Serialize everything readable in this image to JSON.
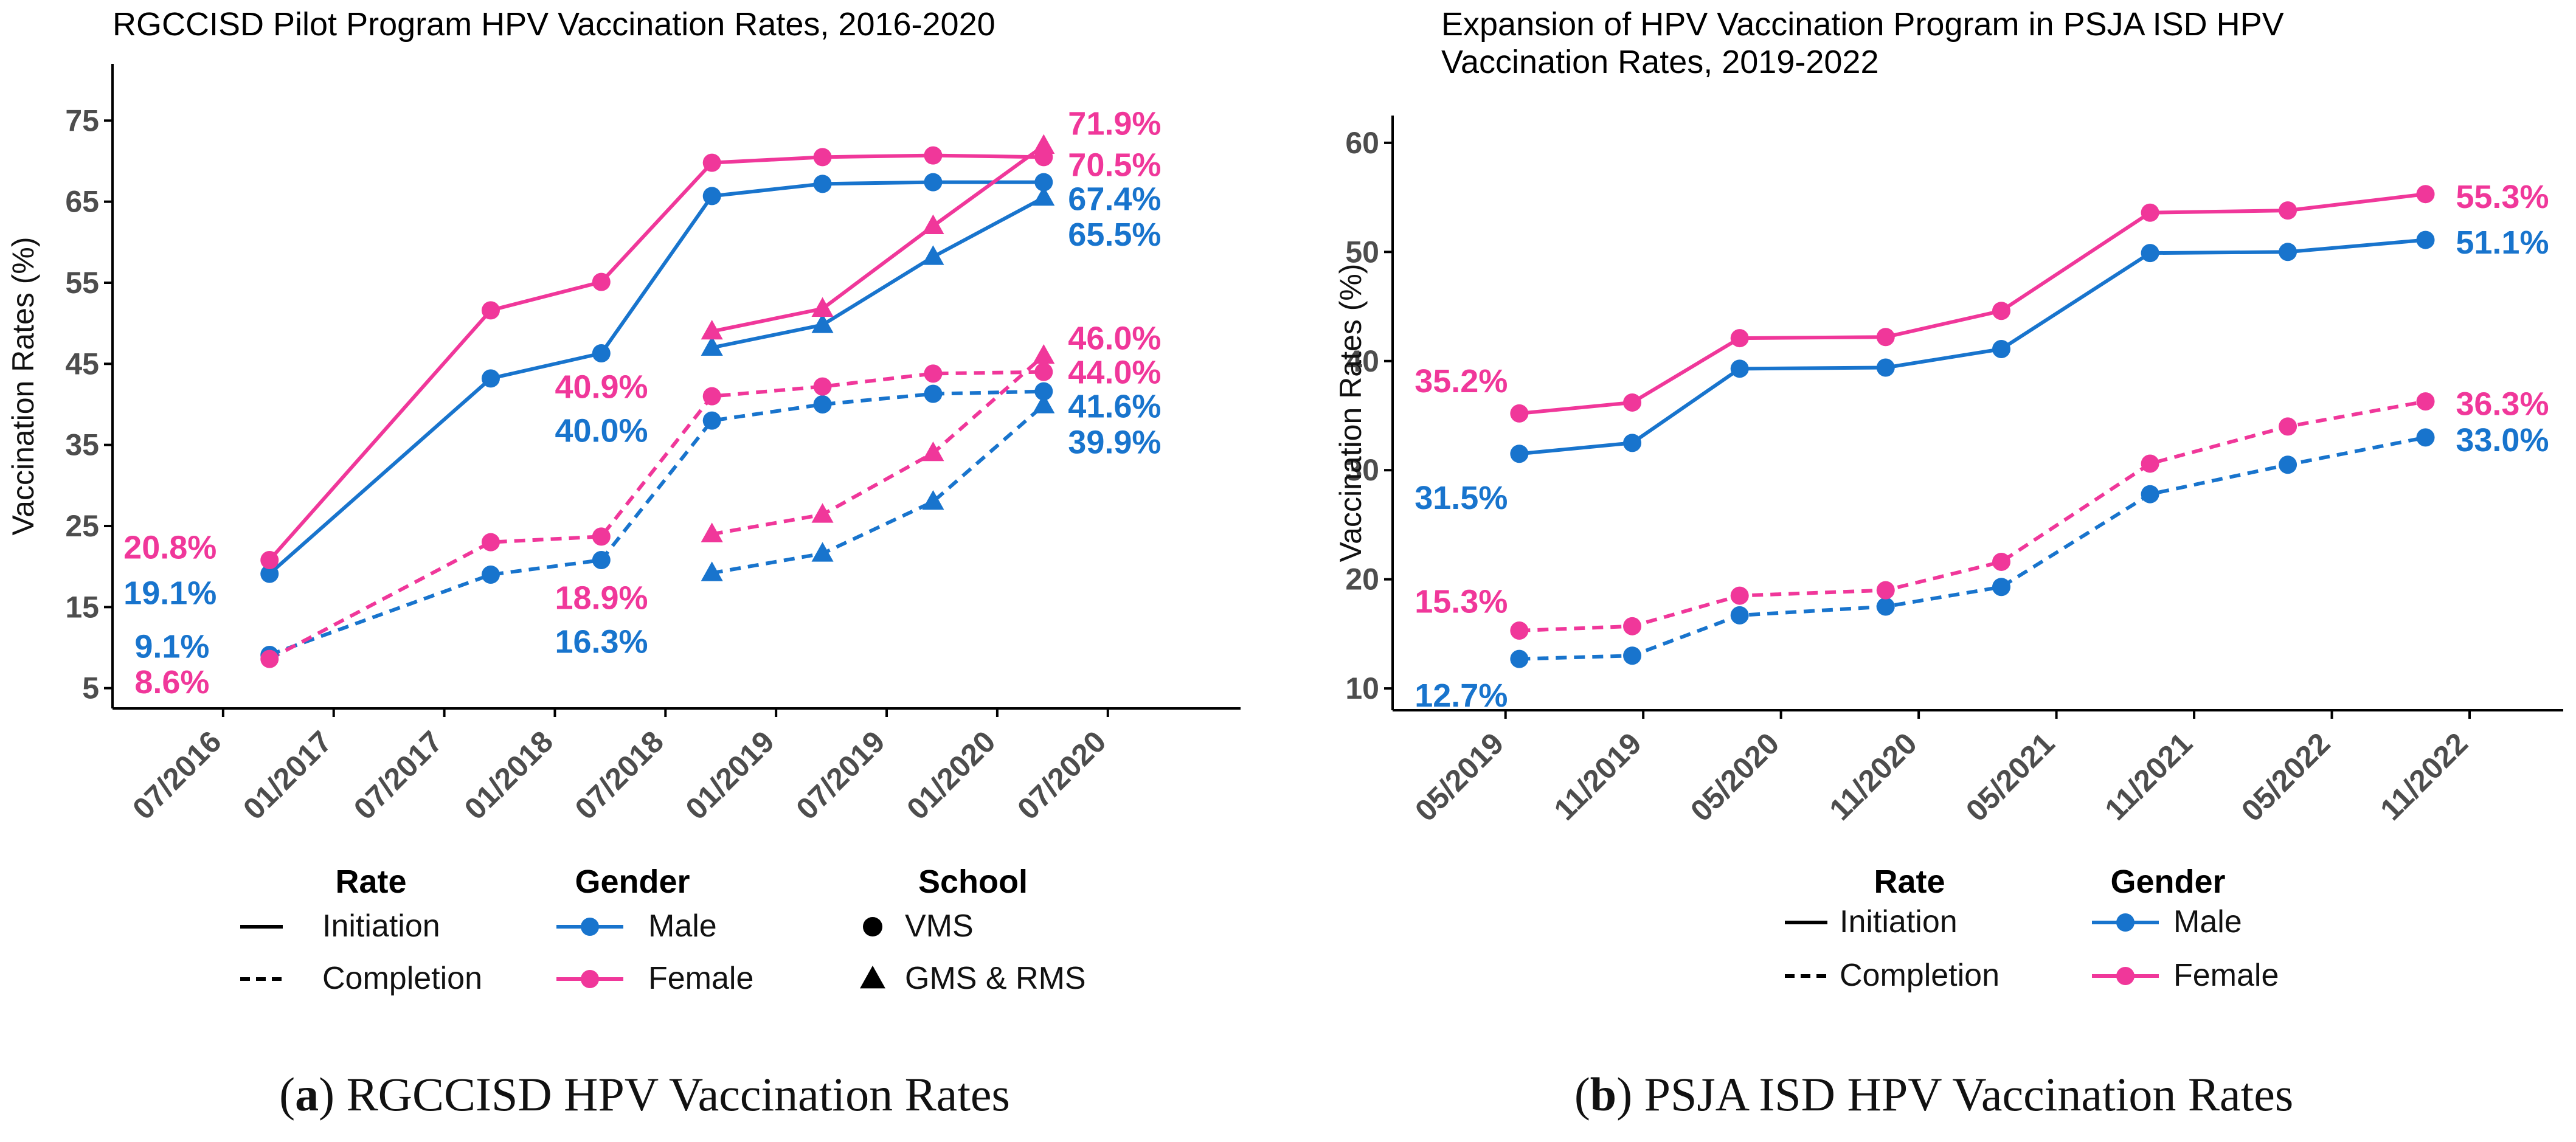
{
  "colors": {
    "male": "#1874CD",
    "female": "#F0379A",
    "axis": "#000000",
    "tick_text": "#4D4D4D"
  },
  "chart_data": [
    {
      "type": "line",
      "title": "RGCCISD Pilot Program HPV Vaccination Rates, 2016-2020",
      "xlabel": "",
      "ylabel": "Vaccination Rates (%)",
      "ylim": [
        2.5,
        82
      ],
      "yticks": [
        5,
        15,
        25,
        35,
        45,
        55,
        65,
        75
      ],
      "ytick_labels": [
        "5",
        "15",
        "25",
        "35",
        "45",
        "55",
        "65",
        "75"
      ],
      "xticks": [
        2016.5,
        2017.0,
        2017.5,
        2018.0,
        2018.5,
        2019.0,
        2019.5,
        2020.0,
        2020.5
      ],
      "xtick_labels": [
        "07/2016",
        "01/2017",
        "07/2017",
        "01/2018",
        "07/2018",
        "01/2019",
        "07/2019",
        "01/2020",
        "07/2020"
      ],
      "xlim": [
        2016.0,
        2021.1
      ],
      "grid": false,
      "series": [
        {
          "name": "Male Initiation VMS",
          "gender": "Male",
          "rate": "Initiation",
          "school": "VMS",
          "x": [
            2016.71,
            2017.71,
            2018.21,
            2018.71,
            2019.21,
            2019.71,
            2020.21
          ],
          "y": [
            19.1,
            43.2,
            46.3,
            65.7,
            67.2,
            67.4,
            67.4
          ]
        },
        {
          "name": "Female Initiation VMS",
          "gender": "Female",
          "rate": "Initiation",
          "school": "VMS",
          "x": [
            2016.71,
            2017.71,
            2018.21,
            2018.71,
            2019.21,
            2019.71,
            2020.21
          ],
          "y": [
            20.8,
            51.6,
            55.1,
            69.8,
            70.5,
            70.7,
            70.5
          ]
        },
        {
          "name": "Male Completion VMS",
          "gender": "Male",
          "rate": "Completion",
          "school": "VMS",
          "x": [
            2016.71,
            2017.71,
            2018.21,
            2018.71,
            2019.21,
            2019.71,
            2020.21
          ],
          "y": [
            9.1,
            19.0,
            20.8,
            38.0,
            40.0,
            41.3,
            41.6
          ]
        },
        {
          "name": "Female Completion VMS",
          "gender": "Female",
          "rate": "Completion",
          "school": "VMS",
          "x": [
            2016.71,
            2017.71,
            2018.21,
            2018.71,
            2019.21,
            2019.71,
            2020.21
          ],
          "y": [
            8.6,
            23.0,
            23.7,
            41.0,
            42.2,
            43.8,
            44.0
          ]
        },
        {
          "name": "Male Initiation GMS & RMS",
          "gender": "Male",
          "rate": "Initiation",
          "school": "GMS & RMS",
          "x": [
            2018.71,
            2019.21,
            2019.71,
            2020.21
          ],
          "y": [
            47.0,
            49.8,
            58.2,
            65.5
          ]
        },
        {
          "name": "Female Initiation GMS & RMS",
          "gender": "Female",
          "rate": "Initiation",
          "school": "GMS & RMS",
          "x": [
            2018.71,
            2019.21,
            2019.71,
            2020.21
          ],
          "y": [
            49.0,
            51.8,
            62.0,
            71.9
          ]
        },
        {
          "name": "Male Completion GMS & RMS",
          "gender": "Male",
          "rate": "Completion",
          "school": "GMS & RMS",
          "x": [
            2018.71,
            2019.21,
            2019.71,
            2020.21
          ],
          "y": [
            19.2,
            21.6,
            28.0,
            39.9
          ]
        },
        {
          "name": "Female Completion GMS & RMS",
          "gender": "Female",
          "rate": "Completion",
          "school": "GMS & RMS",
          "x": [
            2018.71,
            2019.21,
            2019.71,
            2020.21
          ],
          "y": [
            24.0,
            26.4,
            34.0,
            46.0
          ]
        }
      ],
      "annotations": [
        {
          "text": "20.8%",
          "gender": "Female",
          "x": 2016.05,
          "y": 22.4,
          "anchor": "start"
        },
        {
          "text": "19.1%",
          "gender": "Male",
          "x": 2016.05,
          "y": 16.8,
          "anchor": "start"
        },
        {
          "text": "9.1%",
          "gender": "Male",
          "x": 2016.1,
          "y": 10.2,
          "anchor": "start"
        },
        {
          "text": "8.6%",
          "gender": "Female",
          "x": 2016.1,
          "y": 5.8,
          "anchor": "start"
        },
        {
          "text": "40.9%",
          "gender": "Female",
          "x": 2018.0,
          "y": 42.2,
          "anchor": "start"
        },
        {
          "text": "40.0%",
          "gender": "Male",
          "x": 2018.0,
          "y": 36.8,
          "anchor": "start"
        },
        {
          "text": "18.9%",
          "gender": "Female",
          "x": 2018.0,
          "y": 16.2,
          "anchor": "start"
        },
        {
          "text": "16.3%",
          "gender": "Male",
          "x": 2018.0,
          "y": 10.8,
          "anchor": "start"
        },
        {
          "text": "71.9%",
          "gender": "Female",
          "x": 2020.32,
          "y": 74.7,
          "anchor": "start"
        },
        {
          "text": "70.5%",
          "gender": "Female",
          "x": 2020.32,
          "y": 69.6,
          "anchor": "start"
        },
        {
          "text": "67.4%",
          "gender": "Male",
          "x": 2020.32,
          "y": 65.4,
          "anchor": "start"
        },
        {
          "text": "65.5%",
          "gender": "Male",
          "x": 2020.32,
          "y": 61.0,
          "anchor": "start"
        },
        {
          "text": "46.0%",
          "gender": "Female",
          "x": 2020.32,
          "y": 48.2,
          "anchor": "start"
        },
        {
          "text": "44.0%",
          "gender": "Female",
          "x": 2020.32,
          "y": 44.0,
          "anchor": "start"
        },
        {
          "text": "41.6%",
          "gender": "Male",
          "x": 2020.32,
          "y": 39.8,
          "anchor": "start"
        },
        {
          "text": "39.9%",
          "gender": "Male",
          "x": 2020.32,
          "y": 35.4,
          "anchor": "start"
        }
      ],
      "legend": {
        "position": "bottom",
        "groups": [
          {
            "title": "Rate",
            "items": [
              {
                "label": "Initiation",
                "kind": "solid"
              },
              {
                "label": "Completion",
                "kind": "dashed"
              }
            ]
          },
          {
            "title": "Gender",
            "items": [
              {
                "label": "Male",
                "kind": "male"
              },
              {
                "label": "Female",
                "kind": "female"
              }
            ]
          },
          {
            "title": "School",
            "items": [
              {
                "label": "VMS",
                "kind": "circle"
              },
              {
                "label": "GMS & RMS",
                "kind": "triangle"
              }
            ]
          }
        ]
      }
    },
    {
      "type": "line",
      "title": "Expansion of HPV Vaccination Program in PSJA ISD HPV Vaccination Rates, 2019-2022",
      "title_lines": [
        "Expansion of HPV Vaccination Program in PSJA ISD HPV",
        "Vaccination Rates, 2019-2022"
      ],
      "xlabel": "",
      "ylabel": "Vaccination Rates (%)",
      "ylim": [
        8,
        62.5
      ],
      "yticks": [
        10,
        20,
        30,
        40,
        50,
        60
      ],
      "ytick_labels": [
        "10",
        "20",
        "30",
        "40",
        "50",
        "60"
      ],
      "xticks": [
        2019.33,
        2019.83,
        2020.33,
        2020.83,
        2021.33,
        2021.83,
        2022.33,
        2022.83
      ],
      "xtick_labels": [
        "05/2019",
        "11/2019",
        "05/2020",
        "11/2020",
        "05/2021",
        "11/2021",
        "05/2022",
        "11/2022"
      ],
      "xlim": [
        2018.92,
        2023.17
      ],
      "grid": false,
      "series": [
        {
          "name": "Male Initiation",
          "gender": "Male",
          "rate": "Initiation",
          "x": [
            2019.38,
            2019.79,
            2020.18,
            2020.71,
            2021.13,
            2021.67,
            2022.17,
            2022.67
          ],
          "y": [
            31.5,
            32.5,
            39.3,
            39.4,
            41.1,
            49.9,
            50.0,
            51.1
          ]
        },
        {
          "name": "Female Initiation",
          "gender": "Female",
          "rate": "Initiation",
          "x": [
            2019.38,
            2019.79,
            2020.18,
            2020.71,
            2021.13,
            2021.67,
            2022.17,
            2022.67
          ],
          "y": [
            35.2,
            36.2,
            42.1,
            42.2,
            44.6,
            53.6,
            53.8,
            55.3
          ]
        },
        {
          "name": "Male Completion",
          "gender": "Male",
          "rate": "Completion",
          "x": [
            2019.38,
            2019.79,
            2020.18,
            2020.71,
            2021.13,
            2021.67,
            2022.17,
            2022.67
          ],
          "y": [
            12.7,
            13.0,
            16.7,
            17.5,
            19.3,
            27.8,
            30.5,
            33.0
          ]
        },
        {
          "name": "Female Completion",
          "gender": "Female",
          "rate": "Completion",
          "x": [
            2019.38,
            2019.79,
            2020.18,
            2020.71,
            2021.13,
            2021.67,
            2022.17,
            2022.67
          ],
          "y": [
            15.3,
            15.7,
            18.5,
            19.0,
            21.6,
            30.6,
            34.0,
            36.3
          ]
        }
      ],
      "annotations": [
        {
          "text": "35.2%",
          "gender": "Female",
          "x": 2019.0,
          "y": 38.2,
          "anchor": "start"
        },
        {
          "text": "31.5%",
          "gender": "Male",
          "x": 2019.0,
          "y": 27.5,
          "anchor": "start"
        },
        {
          "text": "15.3%",
          "gender": "Female",
          "x": 2019.0,
          "y": 18.0,
          "anchor": "start"
        },
        {
          "text": "12.7%",
          "gender": "Male",
          "x": 2019.0,
          "y": 9.4,
          "anchor": "start"
        },
        {
          "text": "55.3%",
          "gender": "Female",
          "x": 2022.78,
          "y": 55.1,
          "anchor": "start"
        },
        {
          "text": "51.1%",
          "gender": "Male",
          "x": 2022.78,
          "y": 50.9,
          "anchor": "start"
        },
        {
          "text": "36.3%",
          "gender": "Female",
          "x": 2022.78,
          "y": 36.1,
          "anchor": "start"
        },
        {
          "text": "33.0%",
          "gender": "Male",
          "x": 2022.78,
          "y": 32.8,
          "anchor": "start"
        }
      ],
      "legend": {
        "position": "bottom",
        "groups": [
          {
            "title": "Rate",
            "items": [
              {
                "label": "Initiation",
                "kind": "solid"
              },
              {
                "label": "Completion",
                "kind": "dashed"
              }
            ]
          },
          {
            "title": "Gender",
            "items": [
              {
                "label": "Male",
                "kind": "male"
              },
              {
                "label": "Female",
                "kind": "female"
              }
            ]
          }
        ]
      }
    }
  ],
  "captions": [
    {
      "letter": "a",
      "text": " RGCCISD HPV Vaccination Rates"
    },
    {
      "letter": "b",
      "text": " PSJA ISD HPV Vaccination Rates"
    }
  ]
}
